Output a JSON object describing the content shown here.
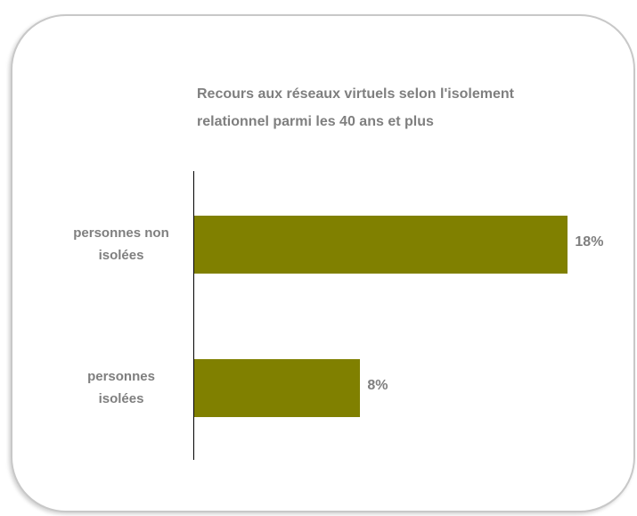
{
  "chart_data": {
    "type": "bar",
    "orientation": "horizontal",
    "title_lines": [
      "Recours aux réseaux virtuels selon l'isolement",
      "relationnel parmi les 40 ans et plus"
    ],
    "categories": [
      {
        "lines": [
          "personnes non",
          "isolées"
        ]
      },
      {
        "lines": [
          "personnes",
          "isolées"
        ]
      }
    ],
    "values": [
      18,
      8
    ],
    "value_labels": [
      "18%",
      "8%"
    ],
    "unit": "%",
    "xlim": [
      0,
      20
    ],
    "grid": false,
    "legend": "none",
    "bar_color": "#808000",
    "text_color": "#7f7f7f"
  }
}
